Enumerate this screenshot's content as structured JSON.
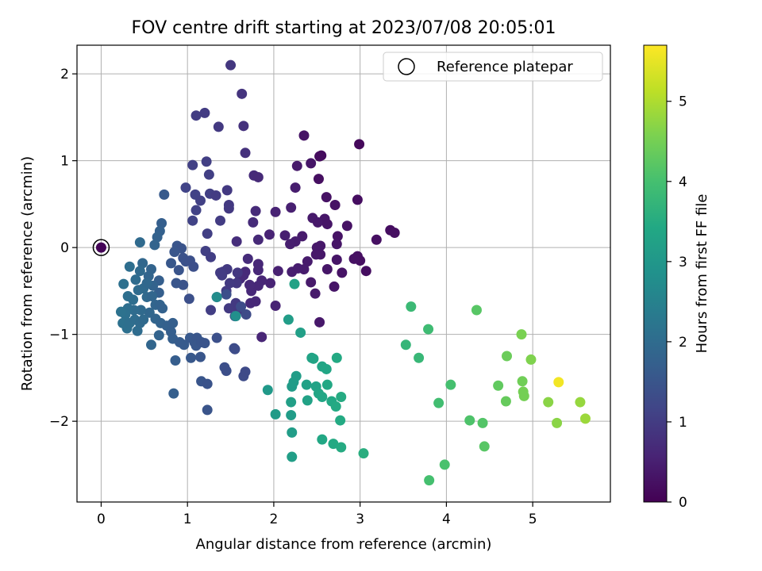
{
  "chart_data": {
    "type": "scatter",
    "title": "FOV centre drift starting at 2023/07/08 20:05:01",
    "xlabel": "Angular distance from reference (arcmin)",
    "ylabel": "Rotation from reference (arcmin)",
    "xlim": [
      -0.28,
      5.9
    ],
    "ylim": [
      -2.93,
      2.33
    ],
    "xticks": [
      0,
      1,
      2,
      3,
      4,
      5
    ],
    "yticks": [
      -2,
      -1,
      0,
      1,
      2
    ],
    "grid": true,
    "colormap": "viridis",
    "colorbar": {
      "label": "Hours from first FF file",
      "range": [
        0,
        5.7
      ],
      "ticks": [
        0,
        1,
        2,
        3,
        4,
        5
      ]
    },
    "legend": {
      "placement": "top-right",
      "entries": [
        {
          "label": "Reference platepar",
          "marker": "open-circle"
        }
      ]
    },
    "reference_point": {
      "x": 0,
      "y": 0
    },
    "points": [
      {
        "x": 0.0,
        "y": 0.0,
        "c": 0.05
      },
      {
        "x": 2.99,
        "y": 1.19,
        "c": 0.12
      },
      {
        "x": 2.55,
        "y": 1.06,
        "c": 0.15
      },
      {
        "x": 2.53,
        "y": 1.05,
        "c": 0.18
      },
      {
        "x": 2.35,
        "y": 1.29,
        "c": 0.3
      },
      {
        "x": 2.43,
        "y": 0.97,
        "c": 0.35
      },
      {
        "x": 2.27,
        "y": 0.94,
        "c": 0.4
      },
      {
        "x": 2.52,
        "y": 0.79,
        "c": 0.22
      },
      {
        "x": 2.97,
        "y": 0.55,
        "c": 0.2
      },
      {
        "x": 2.61,
        "y": 0.58,
        "c": 0.28
      },
      {
        "x": 2.25,
        "y": 0.69,
        "c": 0.45
      },
      {
        "x": 2.71,
        "y": 0.49,
        "c": 0.3
      },
      {
        "x": 2.2,
        "y": 0.46,
        "c": 0.5
      },
      {
        "x": 2.02,
        "y": 0.41,
        "c": 0.55
      },
      {
        "x": 2.45,
        "y": 0.34,
        "c": 0.4
      },
      {
        "x": 2.59,
        "y": 0.33,
        "c": 0.35
      },
      {
        "x": 2.51,
        "y": 0.29,
        "c": 0.38
      },
      {
        "x": 2.62,
        "y": 0.27,
        "c": 0.33
      },
      {
        "x": 2.85,
        "y": 0.25,
        "c": 0.28
      },
      {
        "x": 3.35,
        "y": 0.2,
        "c": 0.2
      },
      {
        "x": 3.4,
        "y": 0.17,
        "c": 0.22
      },
      {
        "x": 3.19,
        "y": 0.09,
        "c": 0.25
      },
      {
        "x": 2.74,
        "y": 0.13,
        "c": 0.3
      },
      {
        "x": 2.33,
        "y": 0.13,
        "c": 0.42
      },
      {
        "x": 2.13,
        "y": 0.14,
        "c": 0.48
      },
      {
        "x": 1.95,
        "y": 0.15,
        "c": 0.55
      },
      {
        "x": 2.25,
        "y": 0.07,
        "c": 0.45
      },
      {
        "x": 2.19,
        "y": 0.04,
        "c": 0.47
      },
      {
        "x": 2.54,
        "y": 0.02,
        "c": 0.36
      },
      {
        "x": 2.5,
        "y": 0.0,
        "c": 0.38
      },
      {
        "x": 2.73,
        "y": 0.04,
        "c": 0.32
      },
      {
        "x": 2.97,
        "y": -0.1,
        "c": 0.24
      },
      {
        "x": 3.0,
        "y": -0.15,
        "c": 0.22
      },
      {
        "x": 3.07,
        "y": -0.27,
        "c": 0.2
      },
      {
        "x": 2.93,
        "y": -0.13,
        "c": 0.26
      },
      {
        "x": 2.54,
        "y": -0.08,
        "c": 0.36
      },
      {
        "x": 2.49,
        "y": -0.08,
        "c": 0.38
      },
      {
        "x": 2.73,
        "y": -0.14,
        "c": 0.32
      },
      {
        "x": 2.39,
        "y": -0.16,
        "c": 0.42
      },
      {
        "x": 2.35,
        "y": -0.25,
        "c": 0.44
      },
      {
        "x": 2.62,
        "y": -0.25,
        "c": 0.34
      },
      {
        "x": 2.79,
        "y": -0.29,
        "c": 0.3
      },
      {
        "x": 2.43,
        "y": -0.4,
        "c": 0.4
      },
      {
        "x": 2.7,
        "y": -0.45,
        "c": 0.32
      },
      {
        "x": 2.21,
        "y": -0.28,
        "c": 0.48
      },
      {
        "x": 2.28,
        "y": -0.24,
        "c": 0.46
      },
      {
        "x": 2.05,
        "y": -0.27,
        "c": 0.52
      },
      {
        "x": 1.96,
        "y": -0.41,
        "c": 0.55
      },
      {
        "x": 2.48,
        "y": -0.53,
        "c": 0.4
      },
      {
        "x": 2.53,
        "y": -0.86,
        "c": 0.38
      },
      {
        "x": 2.02,
        "y": -0.67,
        "c": 0.55
      },
      {
        "x": 1.86,
        "y": -0.38,
        "c": 0.6
      },
      {
        "x": 1.74,
        "y": -0.5,
        "c": 0.65
      },
      {
        "x": 1.82,
        "y": -0.44,
        "c": 0.62
      },
      {
        "x": 1.73,
        "y": -0.64,
        "c": 0.66
      },
      {
        "x": 1.79,
        "y": -0.62,
        "c": 0.64
      },
      {
        "x": 1.86,
        "y": -1.03,
        "c": 0.6
      },
      {
        "x": 1.82,
        "y": -0.19,
        "c": 0.62
      },
      {
        "x": 1.72,
        "y": -0.43,
        "c": 0.66
      },
      {
        "x": 1.67,
        "y": -0.28,
        "c": 0.68
      },
      {
        "x": 1.61,
        "y": -0.36,
        "c": 0.7
      },
      {
        "x": 1.82,
        "y": -0.26,
        "c": 0.62
      },
      {
        "x": 1.65,
        "y": -0.32,
        "c": 0.69
      },
      {
        "x": 1.77,
        "y": 0.83,
        "c": 0.7
      },
      {
        "x": 1.82,
        "y": 0.81,
        "c": 0.68
      },
      {
        "x": 1.76,
        "y": 0.29,
        "c": 0.7
      },
      {
        "x": 1.79,
        "y": 0.42,
        "c": 0.69
      },
      {
        "x": 1.82,
        "y": 0.09,
        "c": 0.68
      },
      {
        "x": 1.7,
        "y": -0.13,
        "c": 0.72
      },
      {
        "x": 1.57,
        "y": 0.07,
        "c": 0.75
      },
      {
        "x": 1.67,
        "y": 1.09,
        "c": 0.8
      },
      {
        "x": 1.65,
        "y": 1.4,
        "c": 0.82
      },
      {
        "x": 1.63,
        "y": 1.77,
        "c": 0.85
      },
      {
        "x": 1.5,
        "y": 2.1,
        "c": 0.9
      },
      {
        "x": 1.36,
        "y": 1.39,
        "c": 0.95
      },
      {
        "x": 1.2,
        "y": 1.55,
        "c": 1.0
      },
      {
        "x": 1.1,
        "y": 1.52,
        "c": 1.02
      },
      {
        "x": 1.22,
        "y": 0.99,
        "c": 1.05
      },
      {
        "x": 1.06,
        "y": 0.95,
        "c": 1.08
      },
      {
        "x": 1.25,
        "y": 0.84,
        "c": 1.05
      },
      {
        "x": 1.46,
        "y": 0.66,
        "c": 0.95
      },
      {
        "x": 1.26,
        "y": 0.62,
        "c": 1.05
      },
      {
        "x": 1.33,
        "y": 0.6,
        "c": 1.0
      },
      {
        "x": 1.48,
        "y": 0.49,
        "c": 0.95
      },
      {
        "x": 1.48,
        "y": 0.45,
        "c": 0.95
      },
      {
        "x": 1.09,
        "y": 0.61,
        "c": 1.1
      },
      {
        "x": 1.1,
        "y": 0.43,
        "c": 1.1
      },
      {
        "x": 0.98,
        "y": 0.69,
        "c": 1.15
      },
      {
        "x": 1.15,
        "y": 0.54,
        "c": 1.08
      },
      {
        "x": 1.06,
        "y": 0.31,
        "c": 1.12
      },
      {
        "x": 1.38,
        "y": 0.31,
        "c": 1.0
      },
      {
        "x": 1.23,
        "y": 0.16,
        "c": 1.05
      },
      {
        "x": 1.21,
        "y": -0.04,
        "c": 1.06
      },
      {
        "x": 1.27,
        "y": -0.11,
        "c": 1.04
      },
      {
        "x": 1.41,
        "y": -0.28,
        "c": 0.98
      },
      {
        "x": 1.46,
        "y": -0.25,
        "c": 0.96
      },
      {
        "x": 1.58,
        "y": -0.29,
        "c": 0.92
      },
      {
        "x": 1.57,
        "y": -0.41,
        "c": 0.93
      },
      {
        "x": 1.49,
        "y": -0.41,
        "c": 0.96
      },
      {
        "x": 1.56,
        "y": -0.64,
        "c": 0.94
      },
      {
        "x": 1.48,
        "y": -0.7,
        "c": 0.96
      },
      {
        "x": 1.59,
        "y": -0.72,
        "c": 0.92
      },
      {
        "x": 1.45,
        "y": -0.5,
        "c": 0.97
      },
      {
        "x": 1.4,
        "y": -0.32,
        "c": 0.99
      },
      {
        "x": 1.38,
        "y": -0.29,
        "c": 1.0
      },
      {
        "x": 1.27,
        "y": -0.72,
        "c": 1.04
      },
      {
        "x": 0.73,
        "y": 0.61,
        "c": 1.6
      },
      {
        "x": 0.7,
        "y": 0.28,
        "c": 1.7
      },
      {
        "x": 0.68,
        "y": 0.19,
        "c": 1.75
      },
      {
        "x": 0.65,
        "y": 0.12,
        "c": 1.78
      },
      {
        "x": 0.62,
        "y": 0.03,
        "c": 1.82
      },
      {
        "x": 0.45,
        "y": 0.06,
        "c": 1.95
      },
      {
        "x": 0.88,
        "y": 0.02,
        "c": 1.5
      },
      {
        "x": 0.93,
        "y": -0.01,
        "c": 1.45
      },
      {
        "x": 0.85,
        "y": -0.05,
        "c": 1.52
      },
      {
        "x": 0.95,
        "y": -0.12,
        "c": 1.44
      },
      {
        "x": 0.98,
        "y": -0.16,
        "c": 1.42
      },
      {
        "x": 1.03,
        "y": -0.15,
        "c": 1.4
      },
      {
        "x": 1.07,
        "y": -0.22,
        "c": 1.38
      },
      {
        "x": 0.9,
        "y": -0.26,
        "c": 1.48
      },
      {
        "x": 0.95,
        "y": -0.43,
        "c": 1.45
      },
      {
        "x": 0.87,
        "y": -0.41,
        "c": 1.5
      },
      {
        "x": 0.81,
        "y": -0.18,
        "c": 1.55
      },
      {
        "x": 0.67,
        "y": -0.38,
        "c": 1.7
      },
      {
        "x": 0.67,
        "y": -0.52,
        "c": 1.72
      },
      {
        "x": 0.58,
        "y": -0.25,
        "c": 1.82
      },
      {
        "x": 0.6,
        "y": -0.44,
        "c": 1.8
      },
      {
        "x": 0.55,
        "y": -0.33,
        "c": 1.85
      },
      {
        "x": 0.48,
        "y": -0.18,
        "c": 1.9
      },
      {
        "x": 0.45,
        "y": -0.27,
        "c": 1.95
      },
      {
        "x": 0.4,
        "y": -0.37,
        "c": 2.0
      },
      {
        "x": 0.33,
        "y": -0.22,
        "c": 2.05
      },
      {
        "x": 0.26,
        "y": -0.42,
        "c": 2.1
      },
      {
        "x": 0.31,
        "y": -0.56,
        "c": 2.08
      },
      {
        "x": 0.37,
        "y": -0.6,
        "c": 2.05
      },
      {
        "x": 0.43,
        "y": -0.49,
        "c": 2.0
      },
      {
        "x": 0.49,
        "y": -0.47,
        "c": 1.95
      },
      {
        "x": 0.53,
        "y": -0.41,
        "c": 1.92
      },
      {
        "x": 0.53,
        "y": -0.57,
        "c": 1.93
      },
      {
        "x": 0.59,
        "y": -0.56,
        "c": 1.88
      },
      {
        "x": 0.63,
        "y": -0.66,
        "c": 1.85
      },
      {
        "x": 0.68,
        "y": -0.66,
        "c": 1.8
      },
      {
        "x": 0.71,
        "y": -0.7,
        "c": 1.78
      },
      {
        "x": 0.56,
        "y": -0.75,
        "c": 1.9
      },
      {
        "x": 0.46,
        "y": -0.72,
        "c": 1.95
      },
      {
        "x": 0.38,
        "y": -0.72,
        "c": 2.0
      },
      {
        "x": 0.31,
        "y": -0.7,
        "c": 2.05
      },
      {
        "x": 0.28,
        "y": -0.77,
        "c": 2.1
      },
      {
        "x": 0.23,
        "y": -0.74,
        "c": 2.15
      },
      {
        "x": 0.25,
        "y": -0.87,
        "c": 2.13
      },
      {
        "x": 0.3,
        "y": -0.93,
        "c": 2.1
      },
      {
        "x": 0.33,
        "y": -0.87,
        "c": 2.08
      },
      {
        "x": 0.39,
        "y": -0.83,
        "c": 2.03
      },
      {
        "x": 0.42,
        "y": -0.96,
        "c": 2.0
      },
      {
        "x": 0.45,
        "y": -0.87,
        "c": 1.98
      },
      {
        "x": 0.49,
        "y": -0.83,
        "c": 1.95
      },
      {
        "x": 0.63,
        "y": -0.82,
        "c": 1.85
      },
      {
        "x": 0.69,
        "y": -0.87,
        "c": 1.8
      },
      {
        "x": 0.76,
        "y": -0.9,
        "c": 1.75
      },
      {
        "x": 0.83,
        "y": -0.87,
        "c": 1.7
      },
      {
        "x": 0.67,
        "y": -1.01,
        "c": 1.8
      },
      {
        "x": 0.81,
        "y": -0.97,
        "c": 1.72
      },
      {
        "x": 0.83,
        "y": -1.05,
        "c": 1.7
      },
      {
        "x": 0.58,
        "y": -1.12,
        "c": 1.88
      },
      {
        "x": 0.91,
        "y": -1.09,
        "c": 1.65
      },
      {
        "x": 0.96,
        "y": -1.12,
        "c": 1.62
      },
      {
        "x": 1.03,
        "y": -1.04,
        "c": 1.58
      },
      {
        "x": 1.08,
        "y": -1.09,
        "c": 1.55
      },
      {
        "x": 1.11,
        "y": -1.04,
        "c": 1.53
      },
      {
        "x": 1.1,
        "y": -1.13,
        "c": 1.54
      },
      {
        "x": 1.16,
        "y": -1.09,
        "c": 1.5
      },
      {
        "x": 1.2,
        "y": -1.1,
        "c": 1.48
      },
      {
        "x": 1.04,
        "y": -1.27,
        "c": 1.56
      },
      {
        "x": 1.15,
        "y": -1.26,
        "c": 1.51
      },
      {
        "x": 0.86,
        "y": -1.3,
        "c": 1.68
      },
      {
        "x": 1.16,
        "y": -1.54,
        "c": 1.5
      },
      {
        "x": 1.23,
        "y": -1.57,
        "c": 1.46
      },
      {
        "x": 0.84,
        "y": -1.68,
        "c": 1.7
      },
      {
        "x": 1.23,
        "y": -1.87,
        "c": 1.47
      },
      {
        "x": 1.34,
        "y": -1.04,
        "c": 1.4
      },
      {
        "x": 1.43,
        "y": -1.38,
        "c": 1.38
      },
      {
        "x": 1.45,
        "y": -1.42,
        "c": 1.36
      },
      {
        "x": 1.54,
        "y": -1.16,
        "c": 1.32
      },
      {
        "x": 1.55,
        "y": -1.17,
        "c": 1.31
      },
      {
        "x": 1.65,
        "y": -1.48,
        "c": 1.28
      },
      {
        "x": 1.67,
        "y": -1.43,
        "c": 1.27
      },
      {
        "x": 1.02,
        "y": -0.59,
        "c": 1.4
      },
      {
        "x": 1.45,
        "y": -0.54,
        "c": 1.38
      },
      {
        "x": 1.34,
        "y": -0.57,
        "c": 1.42
      },
      {
        "x": 1.55,
        "y": -0.79,
        "c": 1.32
      },
      {
        "x": 1.62,
        "y": -0.68,
        "c": 1.3
      },
      {
        "x": 1.68,
        "y": -0.77,
        "c": 1.28
      },
      {
        "x": 1.93,
        "y": -1.64,
        "c": 3.05
      },
      {
        "x": 2.02,
        "y": -1.92,
        "c": 3.1
      },
      {
        "x": 2.2,
        "y": -1.93,
        "c": 3.12
      },
      {
        "x": 2.21,
        "y": -2.13,
        "c": 3.15
      },
      {
        "x": 2.21,
        "y": -2.41,
        "c": 3.18
      },
      {
        "x": 2.21,
        "y": -1.6,
        "c": 3.1
      },
      {
        "x": 2.23,
        "y": -1.55,
        "c": 3.12
      },
      {
        "x": 2.26,
        "y": -1.48,
        "c": 3.15
      },
      {
        "x": 2.2,
        "y": -1.78,
        "c": 3.2
      },
      {
        "x": 2.38,
        "y": -1.58,
        "c": 3.25
      },
      {
        "x": 2.39,
        "y": -1.76,
        "c": 3.28
      },
      {
        "x": 2.44,
        "y": -1.27,
        "c": 3.3
      },
      {
        "x": 2.46,
        "y": -1.28,
        "c": 3.32
      },
      {
        "x": 2.49,
        "y": -1.6,
        "c": 3.3
      },
      {
        "x": 2.52,
        "y": -1.68,
        "c": 3.35
      },
      {
        "x": 2.56,
        "y": -1.72,
        "c": 3.38
      },
      {
        "x": 2.56,
        "y": -1.37,
        "c": 3.35
      },
      {
        "x": 2.61,
        "y": -1.4,
        "c": 3.38
      },
      {
        "x": 2.62,
        "y": -1.58,
        "c": 3.4
      },
      {
        "x": 2.67,
        "y": -1.77,
        "c": 3.42
      },
      {
        "x": 2.72,
        "y": -1.83,
        "c": 3.45
      },
      {
        "x": 2.78,
        "y": -1.72,
        "c": 3.48
      },
      {
        "x": 2.73,
        "y": -1.27,
        "c": 3.44
      },
      {
        "x": 2.56,
        "y": -2.21,
        "c": 3.4
      },
      {
        "x": 2.69,
        "y": -2.26,
        "c": 3.45
      },
      {
        "x": 2.78,
        "y": -2.3,
        "c": 3.48
      },
      {
        "x": 2.77,
        "y": -1.99,
        "c": 3.46
      },
      {
        "x": 3.04,
        "y": -2.37,
        "c": 3.55
      },
      {
        "x": 2.31,
        "y": -0.98,
        "c": 3.2
      },
      {
        "x": 2.17,
        "y": -0.83,
        "c": 3.15
      },
      {
        "x": 2.24,
        "y": -0.42,
        "c": 3.25
      },
      {
        "x": 1.56,
        "y": -0.79,
        "c": 2.8
      },
      {
        "x": 1.34,
        "y": -0.57,
        "c": 2.75
      },
      {
        "x": 3.53,
        "y": -1.12,
        "c": 3.75
      },
      {
        "x": 3.68,
        "y": -1.27,
        "c": 3.8
      },
      {
        "x": 3.59,
        "y": -0.68,
        "c": 3.85
      },
      {
        "x": 3.79,
        "y": -0.94,
        "c": 3.9
      },
      {
        "x": 3.91,
        "y": -1.79,
        "c": 3.95
      },
      {
        "x": 4.05,
        "y": -1.58,
        "c": 4.0
      },
      {
        "x": 3.8,
        "y": -2.68,
        "c": 4.0
      },
      {
        "x": 3.98,
        "y": -2.5,
        "c": 4.05
      },
      {
        "x": 4.27,
        "y": -1.99,
        "c": 4.1
      },
      {
        "x": 4.35,
        "y": -0.72,
        "c": 4.2
      },
      {
        "x": 4.42,
        "y": -2.02,
        "c": 4.15
      },
      {
        "x": 4.44,
        "y": -2.29,
        "c": 4.2
      },
      {
        "x": 4.6,
        "y": -1.59,
        "c": 4.3
      },
      {
        "x": 4.7,
        "y": -1.25,
        "c": 4.4
      },
      {
        "x": 4.69,
        "y": -1.77,
        "c": 4.35
      },
      {
        "x": 4.88,
        "y": -1.54,
        "c": 4.45
      },
      {
        "x": 4.89,
        "y": -1.66,
        "c": 4.5
      },
      {
        "x": 4.9,
        "y": -1.71,
        "c": 4.5
      },
      {
        "x": 4.87,
        "y": -1.0,
        "c": 4.55
      },
      {
        "x": 4.98,
        "y": -1.29,
        "c": 4.6
      },
      {
        "x": 5.18,
        "y": -1.78,
        "c": 4.7
      },
      {
        "x": 5.28,
        "y": -2.02,
        "c": 4.7
      },
      {
        "x": 5.3,
        "y": -1.55,
        "c": 5.6
      },
      {
        "x": 5.55,
        "y": -1.78,
        "c": 4.8
      },
      {
        "x": 5.61,
        "y": -1.97,
        "c": 4.85
      }
    ]
  }
}
